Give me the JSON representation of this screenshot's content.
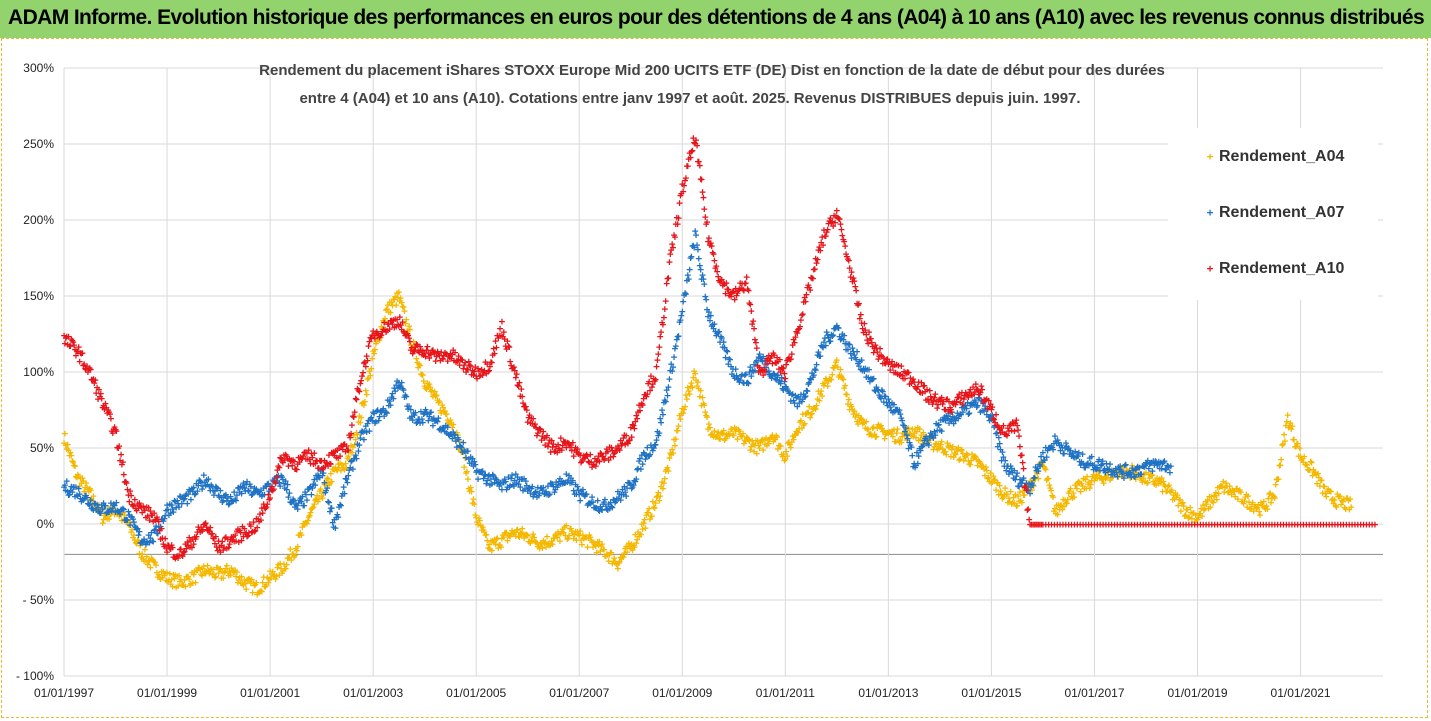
{
  "header": {
    "title": "ADAM Informe. Evolution historique des performances en euros pour des détentions de 4 ans (A04) à 10 ans (A10) avec les revenus connus distribués"
  },
  "chart_data": {
    "type": "scatter",
    "title_line1": "Rendement du placement iShares STOXX Europe Mid 200 UCITS ETF (DE) Dist en fonction de la date de début pour des durées",
    "title_line2": "entre 4 (A04) et 10 ans (A10). Cotations entre janv 1997 et août. 2025. Revenus DISTRIBUES depuis juin. 1997.",
    "xlabel": "",
    "ylabel": "",
    "x_range": [
      "1997-01-01",
      "2022-09-01"
    ],
    "ylim": [
      -100,
      300
    ],
    "y_ticks": [
      {
        "v": 300,
        "label": "300%"
      },
      {
        "v": 250,
        "label": "250%"
      },
      {
        "v": 200,
        "label": "200%"
      },
      {
        "v": 150,
        "label": "150%"
      },
      {
        "v": 100,
        "label": "100%"
      },
      {
        "v": 50,
        "label": "50%"
      },
      {
        "v": 0,
        "label": "0%"
      },
      {
        "v": -50,
        "label": "- 50%"
      },
      {
        "v": -100,
        "label": "- 100%"
      }
    ],
    "x_ticks": [
      "01/01/1997",
      "01/01/1999",
      "01/01/2001",
      "01/01/2003",
      "01/01/2005",
      "01/01/2007",
      "01/01/2009",
      "01/01/2011",
      "01/01/2013",
      "01/01/2015",
      "01/01/2017",
      "01/01/2019",
      "01/01/2021"
    ],
    "grid": true,
    "legend_position": "right",
    "marker": "+",
    "series": [
      {
        "name": "Rendement_A04",
        "color": "#f5b800",
        "points": [
          [
            1997.0,
            58
          ],
          [
            1997.25,
            32
          ],
          [
            1997.5,
            20
          ],
          [
            1997.75,
            5
          ],
          [
            1998.0,
            10
          ],
          [
            1998.25,
            0
          ],
          [
            1998.5,
            -18
          ],
          [
            1998.75,
            -28
          ],
          [
            1999.0,
            -35
          ],
          [
            1999.25,
            -38
          ],
          [
            1999.5,
            -35
          ],
          [
            1999.75,
            -30
          ],
          [
            2000.0,
            -33
          ],
          [
            2000.25,
            -30
          ],
          [
            2000.5,
            -38
          ],
          [
            2000.75,
            -42
          ],
          [
            2001.0,
            -35
          ],
          [
            2001.25,
            -28
          ],
          [
            2001.5,
            -15
          ],
          [
            2001.75,
            5
          ],
          [
            2002.0,
            20
          ],
          [
            2002.25,
            35
          ],
          [
            2002.5,
            40
          ],
          [
            2002.75,
            70
          ],
          [
            2003.0,
            110
          ],
          [
            2003.25,
            140
          ],
          [
            2003.5,
            150
          ],
          [
            2003.75,
            120
          ],
          [
            2004.0,
            95
          ],
          [
            2004.25,
            80
          ],
          [
            2004.5,
            70
          ],
          [
            2004.75,
            45
          ],
          [
            2005.0,
            5
          ],
          [
            2005.25,
            -15
          ],
          [
            2005.5,
            -10
          ],
          [
            2005.75,
            -5
          ],
          [
            2006.0,
            -8
          ],
          [
            2006.25,
            -12
          ],
          [
            2006.5,
            -10
          ],
          [
            2006.75,
            -5
          ],
          [
            2007.0,
            -8
          ],
          [
            2007.25,
            -12
          ],
          [
            2007.5,
            -18
          ],
          [
            2007.75,
            -25
          ],
          [
            2008.0,
            -15
          ],
          [
            2008.25,
            0
          ],
          [
            2008.5,
            15
          ],
          [
            2008.75,
            40
          ],
          [
            2009.0,
            75
          ],
          [
            2009.25,
            100
          ],
          [
            2009.5,
            65
          ],
          [
            2009.75,
            58
          ],
          [
            2010.0,
            60
          ],
          [
            2010.25,
            55
          ],
          [
            2010.5,
            50
          ],
          [
            2010.75,
            60
          ],
          [
            2011.0,
            45
          ],
          [
            2011.25,
            65
          ],
          [
            2011.5,
            75
          ],
          [
            2011.75,
            90
          ],
          [
            2012.0,
            105
          ],
          [
            2012.25,
            80
          ],
          [
            2012.5,
            65
          ],
          [
            2012.75,
            62
          ],
          [
            2013.0,
            60
          ],
          [
            2013.25,
            58
          ],
          [
            2013.5,
            62
          ],
          [
            2013.75,
            55
          ],
          [
            2014.0,
            52
          ],
          [
            2014.25,
            48
          ],
          [
            2014.5,
            45
          ],
          [
            2014.75,
            40
          ],
          [
            2015.0,
            30
          ],
          [
            2015.25,
            20
          ],
          [
            2015.5,
            15
          ],
          [
            2015.75,
            25
          ],
          [
            2016.0,
            40
          ],
          [
            2016.25,
            8
          ],
          [
            2016.5,
            20
          ],
          [
            2016.75,
            25
          ],
          [
            2017.0,
            30
          ],
          [
            2017.25,
            32
          ],
          [
            2017.5,
            35
          ],
          [
            2017.75,
            35
          ],
          [
            2018.0,
            30
          ],
          [
            2018.25,
            28
          ],
          [
            2018.5,
            20
          ],
          [
            2018.75,
            10
          ],
          [
            2019.0,
            5
          ],
          [
            2019.25,
            15
          ],
          [
            2019.5,
            25
          ],
          [
            2019.75,
            20
          ],
          [
            2020.0,
            15
          ],
          [
            2020.25,
            10
          ],
          [
            2020.5,
            20
          ],
          [
            2020.75,
            70
          ],
          [
            2021.0,
            45
          ],
          [
            2021.25,
            35
          ],
          [
            2021.5,
            20
          ],
          [
            2021.75,
            15
          ],
          [
            2022.0,
            12
          ]
        ]
      },
      {
        "name": "Rendement_A07",
        "color": "#1f72c4",
        "points": [
          [
            1997.0,
            25
          ],
          [
            1997.25,
            22
          ],
          [
            1997.5,
            15
          ],
          [
            1997.75,
            10
          ],
          [
            1998.0,
            12
          ],
          [
            1998.25,
            5
          ],
          [
            1998.5,
            -10
          ],
          [
            1998.75,
            -8
          ],
          [
            1999.0,
            10
          ],
          [
            1999.25,
            15
          ],
          [
            1999.5,
            20
          ],
          [
            1999.75,
            30
          ],
          [
            2000.0,
            20
          ],
          [
            2000.25,
            15
          ],
          [
            2000.5,
            25
          ],
          [
            2000.75,
            20
          ],
          [
            2001.0,
            25
          ],
          [
            2001.25,
            30
          ],
          [
            2001.5,
            10
          ],
          [
            2001.75,
            20
          ],
          [
            2002.0,
            35
          ],
          [
            2002.25,
            0
          ],
          [
            2002.5,
            30
          ],
          [
            2002.75,
            55
          ],
          [
            2003.0,
            70
          ],
          [
            2003.25,
            75
          ],
          [
            2003.5,
            95
          ],
          [
            2003.75,
            70
          ],
          [
            2004.0,
            72
          ],
          [
            2004.25,
            68
          ],
          [
            2004.5,
            60
          ],
          [
            2004.75,
            50
          ],
          [
            2005.0,
            35
          ],
          [
            2005.25,
            30
          ],
          [
            2005.5,
            25
          ],
          [
            2005.75,
            30
          ],
          [
            2006.0,
            25
          ],
          [
            2006.25,
            20
          ],
          [
            2006.5,
            25
          ],
          [
            2006.75,
            30
          ],
          [
            2007.0,
            20
          ],
          [
            2007.25,
            15
          ],
          [
            2007.5,
            12
          ],
          [
            2007.75,
            18
          ],
          [
            2008.0,
            25
          ],
          [
            2008.25,
            45
          ],
          [
            2008.5,
            55
          ],
          [
            2008.75,
            95
          ],
          [
            2009.0,
            140
          ],
          [
            2009.25,
            190
          ],
          [
            2009.5,
            140
          ],
          [
            2009.75,
            120
          ],
          [
            2010.0,
            100
          ],
          [
            2010.25,
            95
          ],
          [
            2010.5,
            110
          ],
          [
            2010.75,
            100
          ],
          [
            2011.0,
            90
          ],
          [
            2011.25,
            80
          ],
          [
            2011.5,
            95
          ],
          [
            2011.75,
            120
          ],
          [
            2012.0,
            130
          ],
          [
            2012.25,
            115
          ],
          [
            2012.5,
            105
          ],
          [
            2012.75,
            90
          ],
          [
            2013.0,
            80
          ],
          [
            2013.25,
            70
          ],
          [
            2013.5,
            40
          ],
          [
            2013.75,
            55
          ],
          [
            2014.0,
            65
          ],
          [
            2014.25,
            70
          ],
          [
            2014.5,
            75
          ],
          [
            2014.75,
            80
          ],
          [
            2015.0,
            70
          ],
          [
            2015.25,
            40
          ],
          [
            2015.5,
            30
          ],
          [
            2015.75,
            25
          ],
          [
            2016.0,
            45
          ],
          [
            2016.25,
            55
          ],
          [
            2016.5,
            48
          ],
          [
            2016.75,
            42
          ],
          [
            2017.0,
            40
          ],
          [
            2017.25,
            38
          ],
          [
            2017.5,
            35
          ],
          [
            2017.75,
            35
          ],
          [
            2018.0,
            38
          ],
          [
            2018.25,
            40
          ],
          [
            2018.5,
            38
          ]
        ]
      },
      {
        "name": "Rendement_A10",
        "color": "#e8141a",
        "points": [
          [
            1997.0,
            122
          ],
          [
            1997.25,
            115
          ],
          [
            1997.5,
            100
          ],
          [
            1997.75,
            80
          ],
          [
            1998.0,
            60
          ],
          [
            1998.25,
            20
          ],
          [
            1998.5,
            10
          ],
          [
            1998.75,
            5
          ],
          [
            1999.0,
            -15
          ],
          [
            1999.25,
            -20
          ],
          [
            1999.5,
            -10
          ],
          [
            1999.75,
            0
          ],
          [
            2000.0,
            -15
          ],
          [
            2000.25,
            -10
          ],
          [
            2000.5,
            -5
          ],
          [
            2000.75,
            0
          ],
          [
            2001.0,
            20
          ],
          [
            2001.25,
            45
          ],
          [
            2001.5,
            40
          ],
          [
            2001.75,
            45
          ],
          [
            2002.0,
            40
          ],
          [
            2002.25,
            45
          ],
          [
            2002.5,
            50
          ],
          [
            2002.75,
            95
          ],
          [
            2003.0,
            125
          ],
          [
            2003.25,
            130
          ],
          [
            2003.5,
            135
          ],
          [
            2003.75,
            115
          ],
          [
            2004.0,
            115
          ],
          [
            2004.25,
            110
          ],
          [
            2004.5,
            112
          ],
          [
            2004.75,
            105
          ],
          [
            2005.0,
            100
          ],
          [
            2005.25,
            105
          ],
          [
            2005.5,
            130
          ],
          [
            2005.75,
            100
          ],
          [
            2006.0,
            70
          ],
          [
            2006.25,
            60
          ],
          [
            2006.5,
            50
          ],
          [
            2006.75,
            55
          ],
          [
            2007.0,
            45
          ],
          [
            2007.25,
            42
          ],
          [
            2007.5,
            45
          ],
          [
            2007.75,
            50
          ],
          [
            2008.0,
            60
          ],
          [
            2008.25,
            85
          ],
          [
            2008.5,
            100
          ],
          [
            2008.75,
            170
          ],
          [
            2009.0,
            220
          ],
          [
            2009.25,
            255
          ],
          [
            2009.5,
            190
          ],
          [
            2009.75,
            160
          ],
          [
            2010.0,
            150
          ],
          [
            2010.25,
            160
          ],
          [
            2010.5,
            100
          ],
          [
            2010.75,
            110
          ],
          [
            2011.0,
            100
          ],
          [
            2011.25,
            130
          ],
          [
            2011.5,
            160
          ],
          [
            2011.75,
            190
          ],
          [
            2012.0,
            205
          ],
          [
            2012.25,
            170
          ],
          [
            2012.5,
            130
          ],
          [
            2012.75,
            115
          ],
          [
            2013.0,
            105
          ],
          [
            2013.25,
            100
          ],
          [
            2013.5,
            95
          ],
          [
            2013.75,
            85
          ],
          [
            2014.0,
            80
          ],
          [
            2014.25,
            78
          ],
          [
            2014.5,
            85
          ],
          [
            2014.75,
            90
          ],
          [
            2015.0,
            75
          ],
          [
            2015.25,
            60
          ],
          [
            2015.5,
            65
          ],
          [
            2015.75,
            0
          ],
          [
            2016.0,
            0
          ],
          [
            2016.5,
            0
          ],
          [
            2017.0,
            0
          ],
          [
            2017.5,
            0
          ],
          [
            2018.0,
            0
          ],
          [
            2018.5,
            0
          ],
          [
            2019.0,
            0
          ],
          [
            2019.5,
            0
          ],
          [
            2020.0,
            0
          ],
          [
            2020.5,
            0
          ],
          [
            2021.0,
            0
          ],
          [
            2021.5,
            0
          ],
          [
            2022.0,
            0
          ],
          [
            2022.5,
            0
          ]
        ]
      }
    ]
  }
}
